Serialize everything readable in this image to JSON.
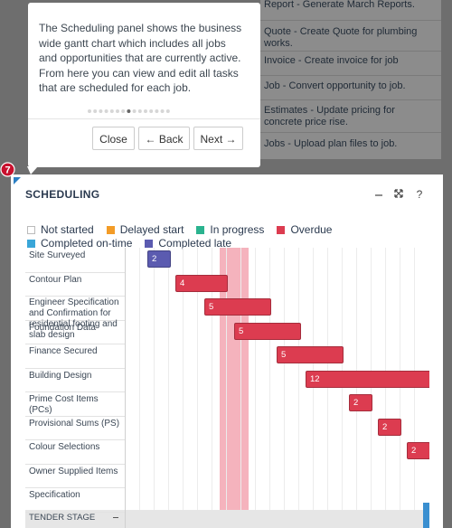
{
  "task_list": [
    "Report - Generate March Reports.",
    "Quote - Create Quote for plumbing works.",
    "Invoice - Create invoice for job",
    "Job - Convert opportunity to job.",
    "Estimates - Update pricing for concrete price rise.",
    "Jobs - Upload plan files to job."
  ],
  "tooltip": {
    "text": "The Scheduling panel shows the business wide gantt chart which includes all jobs and opportunities that are currently active. From here you can view and edit all tasks that are scheduled for each job.",
    "buttons": [
      "Close",
      "← Back",
      "Next →"
    ]
  },
  "step_badge": 7,
  "panel": {
    "title": "SCHEDULING",
    "help": "?",
    "legend": [
      {
        "label": "Not started",
        "color": "#ffffff"
      },
      {
        "label": "Delayed start",
        "color": "#f39c27"
      },
      {
        "label": "In progress",
        "color": "#2bb38f"
      },
      {
        "label": "Overdue",
        "color": "#dc3c50"
      },
      {
        "label": "Completed on-time",
        "color": "#3aa6d8"
      },
      {
        "label": "Completed late",
        "color": "#5b5bb0"
      }
    ],
    "tasks": [
      {
        "name": "Site Surveyed",
        "duration": 2,
        "color": "#5b5bb0"
      },
      {
        "name": "Contour Plan",
        "duration": 4,
        "color": "#dc3c50"
      },
      {
        "name": "Engineer Specification and Confirmation for residential footing and slab design",
        "duration": 5,
        "color": "#dc3c50"
      },
      {
        "name": "Foundation Data",
        "duration": 5,
        "color": "#dc3c50"
      },
      {
        "name": "Finance Secured",
        "duration": 5,
        "color": "#dc3c50"
      },
      {
        "name": "Building Design",
        "duration": 12,
        "color": "#dc3c50"
      },
      {
        "name": "Prime Cost Items (PCs)",
        "duration": 2,
        "color": "#dc3c50"
      },
      {
        "name": "Provisional Sums (PS)",
        "duration": 2,
        "color": "#dc3c50"
      },
      {
        "name": "Colour Selections",
        "duration": 2,
        "color": "#dc3c50"
      },
      {
        "name": "Owner Supplied Items"
      },
      {
        "name": "Specification"
      }
    ],
    "group": "TENDER STAGE"
  }
}
